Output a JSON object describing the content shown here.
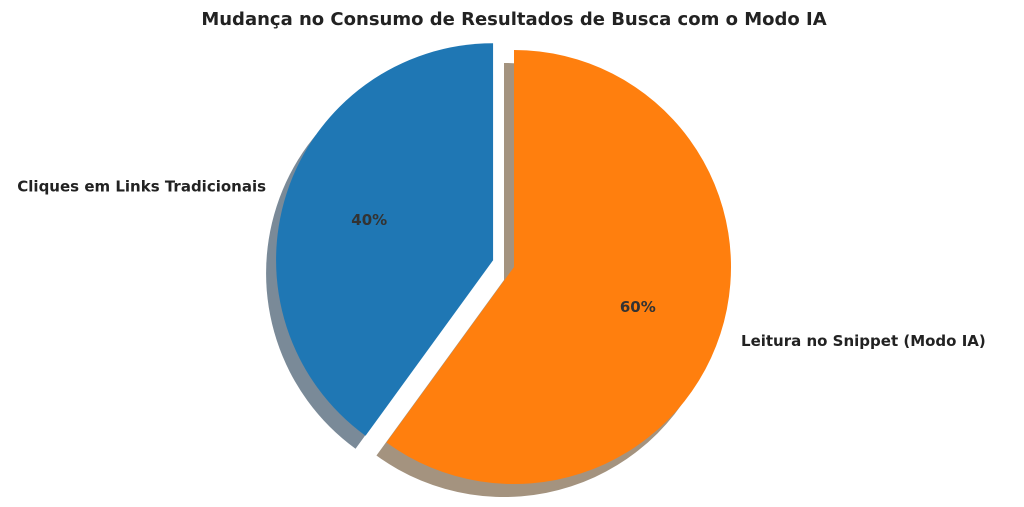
{
  "chart_data": {
    "type": "pie",
    "title": "Mudança no Consumo de Resultados de Busca com o Modo IA",
    "slices": [
      {
        "label": "Cliques em Links Tradicionais",
        "value": 40,
        "pct_label": "40%",
        "color": "#1f77b4",
        "exploded": true
      },
      {
        "label": "Leitura no Snippet (Modo IA)",
        "value": 60,
        "pct_label": "60%",
        "color": "#ff7f0e",
        "exploded": false
      }
    ],
    "start_angle_deg": 90,
    "direction": "counterclockwise",
    "shadow": true
  }
}
